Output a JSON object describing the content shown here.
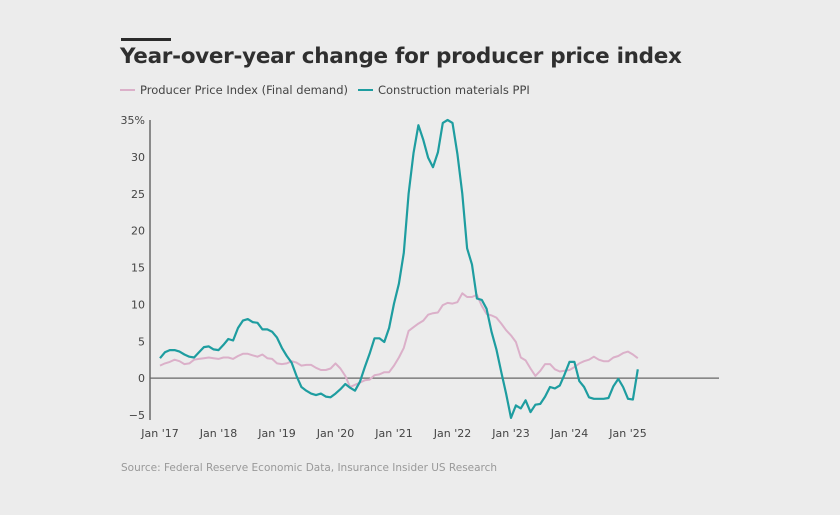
{
  "title": "Year-over-year change for producer price index",
  "source": "Source: Federal Reserve Economic Data, Insurance Insider US Research",
  "colors": {
    "ppi": "#dbb0c9",
    "construction": "#1e9da0",
    "axis": "#555555",
    "background": "#ececec"
  },
  "chart_data": {
    "type": "line",
    "title": "Year-over-year change for producer price index",
    "xlabel": "",
    "ylabel": "",
    "ylim": [
      -5,
      35
    ],
    "yticks": [
      -5,
      0,
      5,
      10,
      15,
      20,
      25,
      30,
      35
    ],
    "ytick_labels": [
      "−5",
      "0",
      "5",
      "10",
      "15",
      "20",
      "25",
      "30",
      "35%"
    ],
    "xtick_labels": [
      "Jan '17",
      "Jan '18",
      "Jan '19",
      "Jan '20",
      "Jan '21",
      "Jan '22",
      "Jan '23",
      "Jan '24",
      "Jan '25"
    ],
    "x_start": "Jan 2017",
    "x_frequency": "monthly",
    "legend_position": "top-left",
    "grid": false,
    "series": [
      {
        "name": "Producer Price Index (Final demand)",
        "color": "#dbb0c9",
        "values": [
          1.7,
          2.0,
          2.2,
          2.5,
          2.3,
          1.9,
          2.0,
          2.5,
          2.6,
          2.7,
          2.8,
          2.7,
          2.6,
          2.8,
          2.8,
          2.6,
          3.0,
          3.3,
          3.3,
          3.1,
          2.9,
          3.2,
          2.7,
          2.6,
          2.0,
          1.9,
          2.0,
          2.3,
          2.1,
          1.7,
          1.8,
          1.8,
          1.4,
          1.1,
          1.1,
          1.3,
          2.0,
          1.3,
          0.3,
          -1.2,
          -0.9,
          -0.6,
          -0.3,
          -0.2,
          0.4,
          0.5,
          0.8,
          0.8,
          1.7,
          2.8,
          4.1,
          6.4,
          6.9,
          7.4,
          7.8,
          8.6,
          8.8,
          8.9,
          9.9,
          10.2,
          10.1,
          10.3,
          11.5,
          11.0,
          11.0,
          11.3,
          9.8,
          8.7,
          8.5,
          8.2,
          7.4,
          6.5,
          5.8,
          4.9,
          2.8,
          2.4,
          1.3,
          0.3,
          1.0,
          1.9,
          1.9,
          1.2,
          0.9,
          1.0,
          1.1,
          1.5,
          2.0,
          2.3,
          2.5,
          2.9,
          2.5,
          2.3,
          2.3,
          2.8,
          3.0,
          3.4,
          3.6,
          3.2,
          2.7
        ]
      },
      {
        "name": "Construction materials PPI",
        "color": "#1e9da0",
        "values": [
          2.7,
          3.5,
          3.8,
          3.8,
          3.6,
          3.2,
          2.9,
          2.8,
          3.5,
          4.2,
          4.3,
          3.9,
          3.8,
          4.5,
          5.3,
          5.1,
          6.8,
          7.8,
          8.0,
          7.6,
          7.5,
          6.6,
          6.6,
          6.3,
          5.5,
          4.1,
          3.0,
          2.1,
          0.3,
          -1.2,
          -1.7,
          -2.1,
          -2.3,
          -2.1,
          -2.5,
          -2.6,
          -2.1,
          -1.5,
          -0.8,
          -1.3,
          -1.7,
          -0.5,
          1.5,
          3.3,
          5.4,
          5.4,
          4.9,
          6.8,
          10.1,
          12.8,
          17.0,
          25.0,
          30.5,
          34.3,
          32.3,
          29.9,
          28.6,
          30.6,
          34.6,
          35.0,
          34.6,
          30.4,
          25.0,
          17.6,
          15.4,
          10.8,
          10.6,
          9.4,
          6.3,
          3.9,
          0.8,
          -2.1,
          -5.4,
          -3.7,
          -4.1,
          -3.0,
          -4.6,
          -3.6,
          -3.5,
          -2.5,
          -1.2,
          -1.4,
          -1.0,
          0.5,
          2.2,
          2.2,
          -0.4,
          -1.2,
          -2.6,
          -2.8,
          -2.8,
          -2.8,
          -2.7,
          -1.1,
          -0.1,
          -1.2,
          -2.8,
          -2.9,
          1.2
        ]
      }
    ]
  }
}
